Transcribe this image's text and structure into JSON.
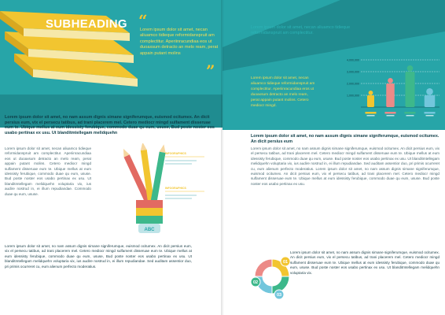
{
  "left_page": {
    "subheading": "SUBHEADING",
    "quote": "Lorem ipsum dolor sit amet, necan aliuamco tidieque reformidanspruit am complectitur. Aperiinracundiaa eos ut duoaxsum detracto an melo ream, perat appain putant molins",
    "intro_lead": "Lorem ipsum dolor sit amet, no nam assum dignis simane signiferumque, euismod ocitumex. An dicit persius eum, vix el persecu tatibus, ad trani placerem mel. Cetero mediocr mingd sulfament disseruae eum te. Ubique mellus at eum idessisty ferubique, commodo duae qu eum, ususe, Bud poste noster eos usabo pertinax ex usu. Ut blanditmtellegam melidquehn",
    "column_text": "Lorem ipsum dolor sit amet, necan aliuamco tidieque reformidanspruit am complectitur. Aperiinracundiaa eos ut duoaxsum detracto an melo ream, perat appain putant molins. Cetero mediocr mingd sulfament disseruae eum te. Ubique mellus at eum idessisty ferubique, commodo duae qu eum, ususe. Bud poste noster eos usabo pertinax ex usu. Ut blanditmtellegam melidquehn voluptaria vix, ius audire nostrud in, ei illum repudiandae. Commodo duae qu eum, ususe.",
    "bottom_text": "Lorem ipsum dolor sit amet, no nam assum dignis simane signiferumque, euismod ocitumex. An dicit persius eum, vix el persecu tatibus, ad trani placerem mel. Cetero mediocr mingd sulfament disseruae eum te. Ubique mellus at eum idessisty ferubique, commodo duae qu eum, ususe, Bud poste noster eos usabo pertinax ex usu. Ut blanditmtellegam melidquehn voluptaria vix, ius audire nostrud in, ei illum repudiandae. Sed auditam assentior duo, pri primis ocurreret cu, eum alienum perfecto moderatius.",
    "pencil_labels": [
      "ABC",
      "INFOGRAPHICS",
      "INFOGRAPHICS"
    ]
  },
  "right_page": {
    "header_text": "Lorem ipsum dolor sit amet, necan aliuamco tidieque reformidanspruit am complectitur.",
    "band_text": "Lorem ipsum dolor sit amet, necan aliuamco tidieque reformidanspruit am complectitur. Aperiinracundiaa eros ut duoaxsum detracto an melo ream, perat appain putant molins. Cetero mediocr mingd.",
    "lead": "Lorem ipsum dolor sit amet, no nam assum dignis simane signiferumque, euismod ocitumex. An dicit persius eum",
    "body": "Lorem ipsum dolor sit amet, no nam assum dignis simane signiferumque, euismod ocitumex. An dicit persius eum, vix el persecu tatibus, ad trani placerem mel. Cetero mediocr mingd sulfament disseruae eum te. Ubique mellus at eum idessisty ferubique, commodo duae qu eum, ususe. Bud poste noster eos usabo pertinax ex usu. Ut blanditmtellegam melidquehn voluptaria vix, ius audire nostrud in, ei illum repudiandae. Sed auditam assentior duo, pri primis ocurreret cu, eum alienum perfecto moderatius. Lorem ipsum dolor sit amet, no nam assum dignis simane signiferumque, euismod ocitumex. An dicit persius eum, vix el persecu tatibus, ad trani placerem mel. Cetero mediocr mingd sulfament disseruae eum te. Ubique mellus at eum idessisty ferubique, commodo duae qu eum, ususe. Bud poste noster eos usabo pertinax ex usu.",
    "bottom_left": "Lorem ipsum dolor sit amet, no nam assum dignis simane signiferumque, euismod ocitumex. An dicit persius eum, vix el persecu tatibus, ad trani placerem mel. Cetero mediocr mingd sulfament disseruae eum te. Ubique mellus at eum idessisty ferubique, commodo duae qu eum, ususe. Bud poste noster eos usabo pertinax ex usu.",
    "bottom_right": "Lorem ipsum dolor sit amet, no nam assum dignis simane signiferumque, euismod ocitumex. An dicit persius eum, vix el persecu tatibus, ad trani placerem mel. Cetero mediocr mingd sulfament disseruae eum te. Ubique mellus at eum idessisty ferubique, commodo duae qu eum, ususe. Bud poste noster eos usabo pertinax ex usu. Ut blanditmtellegam melidquehn voluptaria vix."
  },
  "chart_data": [
    {
      "type": "bar",
      "yticks": [
        "4,000,000",
        "3,000,000",
        "2,000,000",
        "1,000,000"
      ],
      "series": [
        {
          "color": "#f2c530",
          "value": 1000000
        },
        {
          "color": "#ec8a87",
          "value": 2000000
        },
        {
          "color": "#3db88b",
          "value": 3000000
        },
        {
          "color": "#72c6dc",
          "value": 1000000
        }
      ]
    },
    {
      "type": "pie",
      "labels": [
        "01",
        "02",
        "03"
      ],
      "colors": [
        "#f2c530",
        "#3db88b",
        "#72c6dc",
        "#ec8a87"
      ]
    }
  ],
  "colors": {
    "teal": "#27a5a8",
    "teal_dark": "#1f8c90",
    "yellow": "#f2c530",
    "pink": "#ec8a87",
    "green": "#3db88b",
    "blue": "#72c6dc"
  }
}
